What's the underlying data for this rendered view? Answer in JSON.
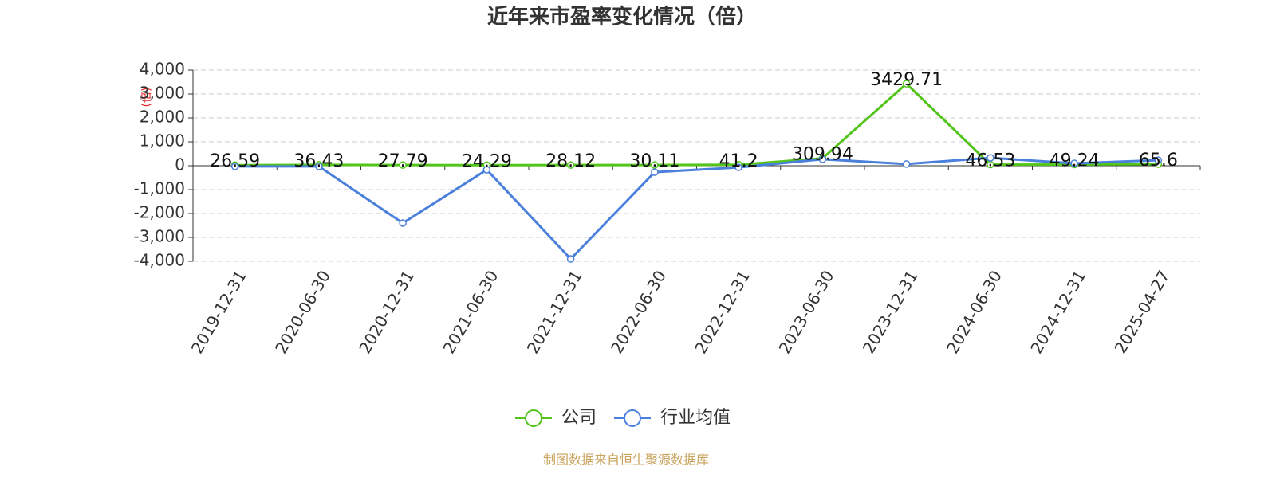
{
  "chart_data": {
    "type": "line",
    "title": "近年来市盈率变化情况（倍）",
    "y_label": "(倍)",
    "categories": [
      "2019-12-31",
      "2020-06-30",
      "2020-12-31",
      "2021-06-30",
      "2021-12-31",
      "2022-06-30",
      "2022-12-31",
      "2023-06-30",
      "2023-12-31",
      "2024-06-30",
      "2024-12-31",
      "2025-04-27"
    ],
    "series": [
      {
        "name": "公司",
        "color": "#52c41a",
        "values": [
          26.59,
          36.43,
          27.79,
          24.29,
          28.12,
          30.11,
          41.2,
          309.94,
          3429.71,
          46.53,
          49.24,
          65.6
        ],
        "show_labels": true
      },
      {
        "name": "行业均值",
        "color": "#4a80dc",
        "values": [
          -30,
          -30,
          -2400,
          -170,
          -3900,
          -270,
          -70,
          270,
          70,
          330,
          100,
          230
        ],
        "show_labels": false
      }
    ],
    "ylim": [
      -4000,
      4000
    ],
    "yticks": [
      {
        "value": 4000,
        "label": "4,000"
      },
      {
        "value": 3000,
        "label": "3,000"
      },
      {
        "value": 2000,
        "label": "2,000"
      },
      {
        "value": 1000,
        "label": "1,000"
      },
      0,
      {
        "value": -1000,
        "label": "-1,000"
      },
      {
        "value": -2000,
        "label": "-2,000"
      },
      {
        "value": -3000,
        "label": "-3,000"
      },
      {
        "value": -4000,
        "label": "-4,000"
      }
    ],
    "grid": true,
    "source": "制图数据来自恒生聚源数据库"
  }
}
